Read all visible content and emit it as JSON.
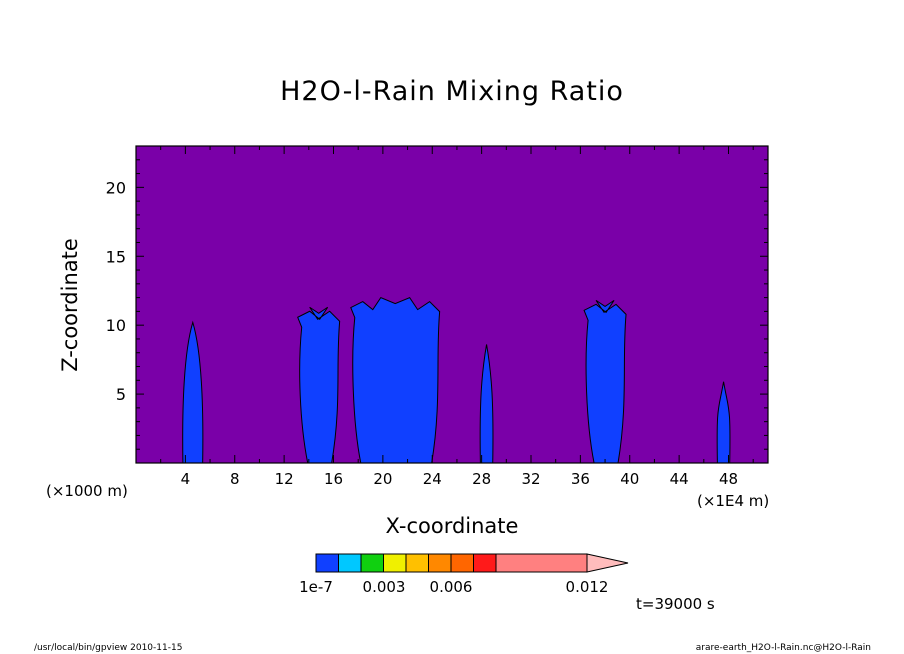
{
  "chart_data": {
    "type": "contour",
    "title": "H2O-l-Rain Mixing Ratio",
    "xlabel": "X-coordinate",
    "ylabel": "Z-coordinate",
    "x_unit": "(×1000 m)",
    "x_unit_right": "(×1E4 m)",
    "xticks": [
      4,
      8,
      12,
      16,
      20,
      24,
      28,
      32,
      36,
      40,
      44,
      48
    ],
    "yticks": [
      5,
      10,
      15,
      20
    ],
    "xlim": [
      0,
      51.2
    ],
    "ylim": [
      0,
      23
    ],
    "grid": false,
    "background_color": "#7a00a8",
    "colorbar": {
      "levels": [
        "1e-7",
        "0.003",
        "0.006",
        "0.012"
      ],
      "level_values": [
        1e-07,
        0.003,
        0.006,
        0.012
      ],
      "colors": [
        "#1040ff",
        "#00c8ff",
        "#10d010",
        "#f0f000",
        "#ffc000",
        "#ff8800",
        "#ff6600",
        "#ff1a1a",
        "#ff8080",
        "#ffbcbc"
      ]
    },
    "cells": [
      {
        "x": 4.6,
        "z_top": 10.2,
        "level": "1e-7"
      },
      {
        "x": 14.8,
        "z_top": 11.3,
        "level": "1e-7"
      },
      {
        "x": 21.0,
        "z_top": 12.0,
        "level": "1e-7"
      },
      {
        "x": 28.4,
        "z_top": 8.6,
        "level": "1e-7"
      },
      {
        "x": 38.0,
        "z_top": 11.8,
        "level": "1e-7"
      },
      {
        "x": 47.6,
        "z_top": 5.9,
        "level": "1e-7"
      }
    ],
    "time_label": "t=39000 s"
  },
  "footer": {
    "left": "/usr/local/bin/gpview  2010-11-15",
    "right": "arare-earth_H2O-l-Rain.nc@H2O-l-Rain"
  }
}
